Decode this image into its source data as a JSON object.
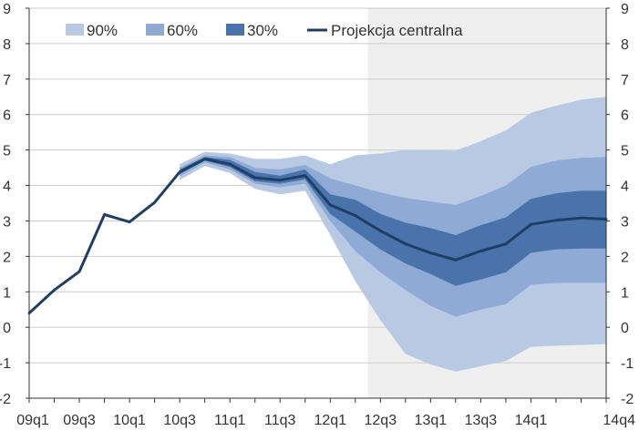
{
  "chart_data": {
    "type": "area",
    "title": "",
    "xlabel": "",
    "ylabel": "",
    "ylim": [
      -2,
      9
    ],
    "y_ticks": [
      -2,
      -1,
      0,
      1,
      2,
      3,
      4,
      5,
      6,
      7,
      8,
      9
    ],
    "x": [
      "09q1",
      "09q2",
      "09q3",
      "09q4",
      "10q1",
      "10q2",
      "10q3",
      "10q4",
      "11q1",
      "11q2",
      "11q3",
      "11q4",
      "12q1",
      "12q2",
      "12q3",
      "12q4",
      "13q1",
      "13q2",
      "13q3",
      "13q4",
      "14q1",
      "14q2",
      "14q3",
      "14q4"
    ],
    "x_tick_labels": [
      "09q1",
      "09q3",
      "10q1",
      "10q3",
      "11q1",
      "11q3",
      "12q1",
      "12q3",
      "13q1",
      "13q3",
      "14q1",
      "14q4"
    ],
    "grid": "horizontal",
    "legend_position": "top-left",
    "projection_shading_start": "12q3",
    "colors": {
      "band_90": "#b8cae3",
      "band_60": "#8eaad5",
      "band_30": "#4a72ab",
      "central": "#1f3e66",
      "shading": "#efefef",
      "grid": "#cccccc",
      "axis": "#333333"
    },
    "legend": [
      {
        "label": "90%",
        "color_key": "band_90",
        "kind": "box"
      },
      {
        "label": "60%",
        "color_key": "band_60",
        "kind": "box"
      },
      {
        "label": "30%",
        "color_key": "band_30",
        "kind": "box"
      },
      {
        "label": "Projekcja centralna",
        "color_key": "central",
        "kind": "line"
      }
    ],
    "series": [
      {
        "name": "Projekcja centralna",
        "values": [
          0.4,
          1.05,
          1.57,
          3.18,
          2.97,
          3.52,
          4.38,
          4.75,
          4.6,
          4.22,
          4.15,
          4.28,
          3.45,
          3.15,
          2.72,
          2.35,
          2.1,
          1.9,
          2.15,
          2.35,
          2.9,
          3.02,
          3.08,
          3.05
        ]
      }
    ],
    "bands": [
      {
        "name": "90%",
        "lower": [
          null,
          null,
          null,
          null,
          null,
          null,
          4.15,
          4.55,
          4.35,
          3.9,
          3.75,
          3.85,
          2.6,
          1.3,
          0.2,
          -0.75,
          -1.05,
          -1.25,
          -1.1,
          -0.95,
          -0.55,
          -0.52,
          -0.5,
          -0.47
        ],
        "upper": [
          null,
          null,
          null,
          null,
          null,
          null,
          4.6,
          4.95,
          4.9,
          4.75,
          4.75,
          4.85,
          4.6,
          4.85,
          4.9,
          5.0,
          5.0,
          4.98,
          5.25,
          5.55,
          6.05,
          6.25,
          6.42,
          6.5
        ]
      },
      {
        "name": "60%",
        "lower": [
          null,
          null,
          null,
          null,
          null,
          null,
          4.25,
          4.65,
          4.45,
          4.05,
          3.95,
          4.05,
          3.0,
          2.15,
          1.55,
          1.05,
          0.6,
          0.3,
          0.5,
          0.65,
          1.2,
          1.25,
          1.25,
          1.25
        ],
        "upper": [
          null,
          null,
          null,
          null,
          null,
          null,
          4.5,
          4.85,
          4.8,
          4.5,
          4.45,
          4.58,
          4.2,
          4.0,
          3.8,
          3.65,
          3.55,
          3.45,
          3.7,
          4.0,
          4.52,
          4.7,
          4.78,
          4.8
        ]
      },
      {
        "name": "30%",
        "lower": [
          null,
          null,
          null,
          null,
          null,
          null,
          4.32,
          4.7,
          4.52,
          4.12,
          4.05,
          4.17,
          3.2,
          2.7,
          2.2,
          1.8,
          1.5,
          1.17,
          1.35,
          1.55,
          2.1,
          2.2,
          2.22,
          2.22
        ],
        "upper": [
          null,
          null,
          null,
          null,
          null,
          null,
          4.45,
          4.8,
          4.72,
          4.38,
          4.28,
          4.45,
          3.75,
          3.6,
          3.2,
          2.95,
          2.8,
          2.6,
          2.88,
          3.1,
          3.62,
          3.78,
          3.85,
          3.85
        ]
      }
    ]
  }
}
